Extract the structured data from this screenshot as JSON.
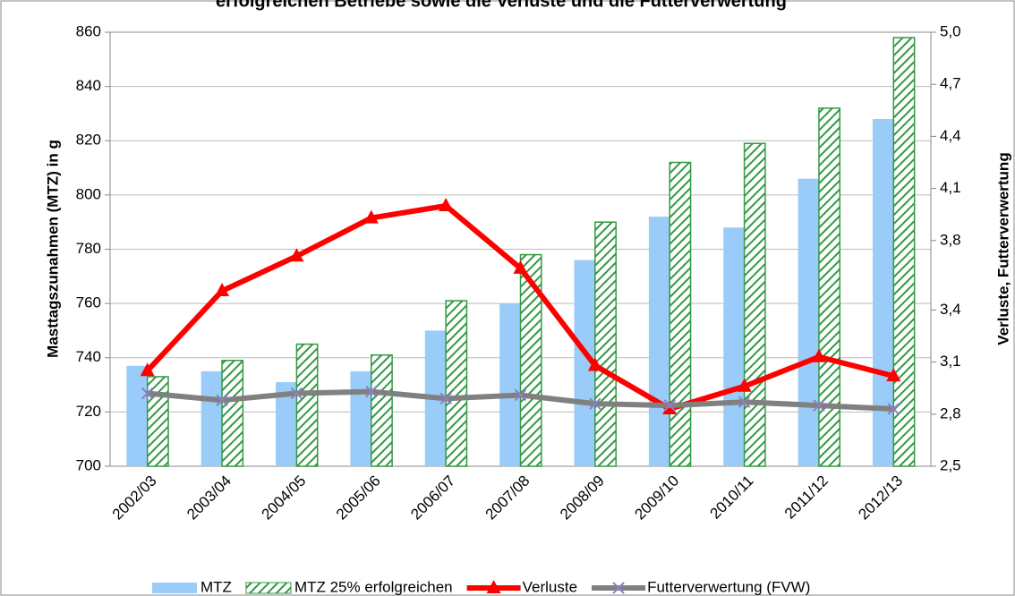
{
  "chart_data": {
    "type": "bar_line",
    "title": "erfolgreichen Betriebe sowie die Verluste und die Futterverwertung",
    "ylabel": "Masttagszunahmen (MTZ) in g",
    "y2label": "Verluste, Futterverwertung",
    "categories": [
      "2002/03",
      "2003/04",
      "2004/05",
      "2005/06",
      "2006/07",
      "2007/08",
      "2008/09",
      "2009/10",
      "2010/11",
      "2011/12",
      "2012/13"
    ],
    "ylim": [
      700,
      860
    ],
    "yticks": [
      700,
      720,
      740,
      760,
      780,
      800,
      820,
      840,
      860
    ],
    "y2lim": [
      2.5,
      5.0
    ],
    "y2ticks": [
      {
        "value": 2.5,
        "label": "2,5"
      },
      {
        "value": 2.8,
        "label": "2,8"
      },
      {
        "value": 3.1,
        "label": "3,1"
      },
      {
        "value": 3.4,
        "label": "3,4"
      },
      {
        "value": 3.8,
        "label": "3,8"
      },
      {
        "value": 4.1,
        "label": "4,1"
      },
      {
        "value": 4.4,
        "label": "4,4"
      },
      {
        "value": 4.7,
        "label": "4,7"
      },
      {
        "value": 5.0,
        "label": "5,0"
      }
    ],
    "legend": "bottom",
    "series": [
      {
        "name": "MTZ",
        "kind": "bar",
        "color": "#99ccf8",
        "values": [
          737,
          735,
          731,
          735,
          750,
          760,
          776,
          792,
          788,
          806,
          828
        ]
      },
      {
        "name": "MTZ 25% erfolgreichen",
        "kind": "hatched-bar",
        "color": "#339944",
        "values": [
          733,
          739,
          745,
          741,
          761,
          778,
          790,
          812,
          819,
          832,
          858
        ]
      },
      {
        "name": "Verluste",
        "kind": "line",
        "marker": "triangle",
        "axis": "y2",
        "color": "#ff0000",
        "values": [
          3.05,
          3.51,
          3.71,
          3.93,
          4.0,
          3.64,
          3.08,
          2.83,
          2.96,
          3.13,
          3.02
        ]
      },
      {
        "name": "Futterverwertung (FVW)",
        "kind": "line",
        "marker": "x",
        "axis": "y2",
        "color": "#808080",
        "values": [
          2.92,
          2.88,
          2.92,
          2.93,
          2.89,
          2.91,
          2.86,
          2.85,
          2.87,
          2.85,
          2.83
        ]
      }
    ]
  }
}
